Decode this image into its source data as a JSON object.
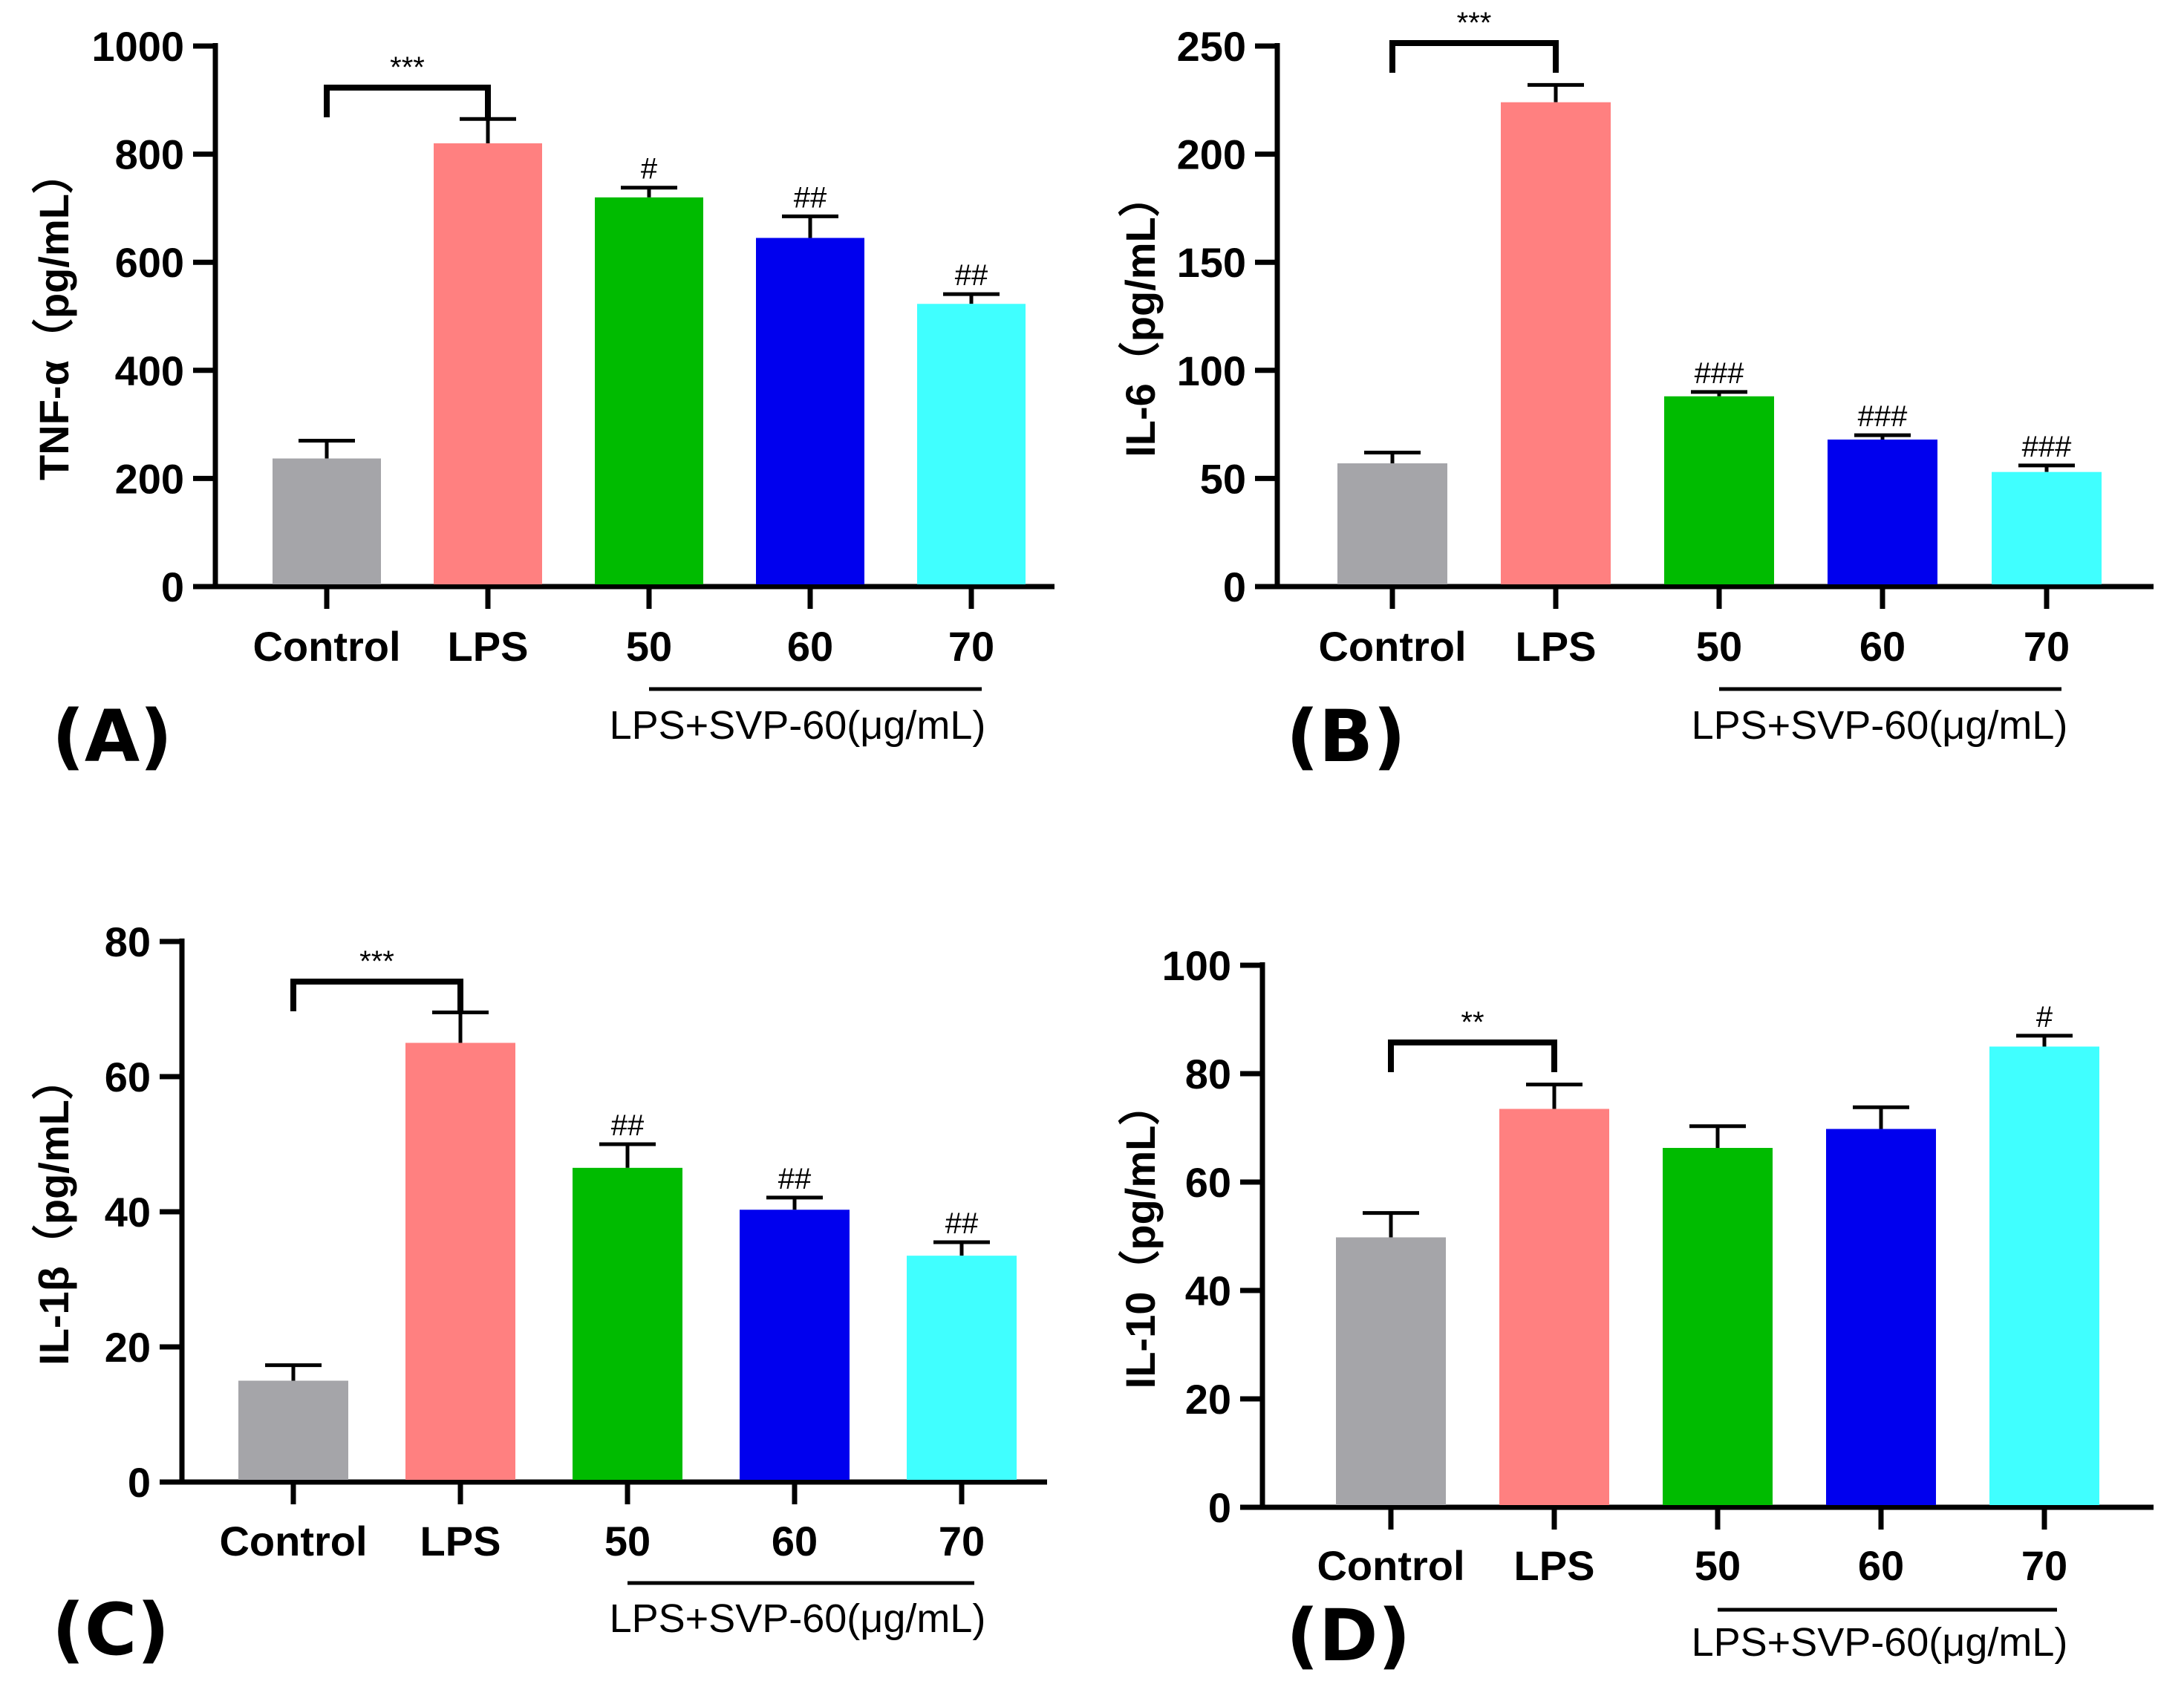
{
  "chart_data": [
    {
      "type": "bar",
      "panel_label": "(A)",
      "ylabel": "TNF-α（pg/mL）",
      "ylim": [
        0,
        1000
      ],
      "yticks": [
        0,
        200,
        400,
        600,
        800,
        1000
      ],
      "categories": [
        "Control",
        "LPS",
        "50",
        "60",
        "70"
      ],
      "values": [
        237,
        820,
        720,
        645,
        523
      ],
      "errors": [
        33,
        45,
        18,
        40,
        18
      ],
      "colors": [
        "#a5a5a9",
        "#ff8080",
        "#00bb00",
        "#0000ee",
        "#40ffff"
      ],
      "annotations": [
        "",
        "",
        "#",
        "##",
        "##"
      ],
      "bracket": {
        "from": 0,
        "to": 1,
        "label": "***"
      },
      "group_label": "LPS+SVP-60(μg/mL)"
    },
    {
      "type": "bar",
      "panel_label": "(B)",
      "ylabel": "IL-6（pg/mL）",
      "ylim": [
        0,
        250
      ],
      "yticks": [
        0,
        50,
        100,
        150,
        200,
        250
      ],
      "categories": [
        "Control",
        "LPS",
        "50",
        "60",
        "70"
      ],
      "values": [
        57,
        224,
        88,
        68,
        53
      ],
      "errors": [
        5,
        8,
        2,
        2,
        3
      ],
      "colors": [
        "#a5a5a9",
        "#ff8080",
        "#00bb00",
        "#0000ee",
        "#40ffff"
      ],
      "annotations": [
        "",
        "",
        "###",
        "###",
        "###"
      ],
      "bracket": {
        "from": 0,
        "to": 1,
        "label": "***"
      },
      "group_label": "LPS+SVP-60(μg/mL)"
    },
    {
      "type": "bar",
      "panel_label": "(C)",
      "ylabel": "IL-1β（pg/mL）",
      "ylim": [
        0,
        80
      ],
      "yticks": [
        0,
        20,
        40,
        60,
        80
      ],
      "categories": [
        "Control",
        "LPS",
        "50",
        "60",
        "70"
      ],
      "values": [
        15,
        65,
        46.5,
        40.3,
        33.5
      ],
      "errors": [
        2.3,
        4.5,
        3.5,
        1.8,
        2
      ],
      "colors": [
        "#a5a5a9",
        "#ff8080",
        "#00bb00",
        "#0000ee",
        "#40ffff"
      ],
      "annotations": [
        "",
        "",
        "##",
        "##",
        "##"
      ],
      "bracket": {
        "from": 0,
        "to": 1,
        "label": "***"
      },
      "group_label": "LPS+SVP-60(μg/mL)"
    },
    {
      "type": "bar",
      "panel_label": "(D)",
      "ylabel": "IL-10（pg/mL）",
      "ylim": [
        0,
        100
      ],
      "yticks": [
        0,
        20,
        40,
        60,
        80,
        100
      ],
      "categories": [
        "Control",
        "LPS",
        "50",
        "60",
        "70"
      ],
      "values": [
        49.8,
        73.5,
        66.3,
        69.8,
        85
      ],
      "errors": [
        4.5,
        4.5,
        4,
        4,
        2
      ],
      "colors": [
        "#a5a5a9",
        "#ff8080",
        "#00bb00",
        "#0000ee",
        "#40ffff"
      ],
      "annotations": [
        "",
        "",
        "",
        "",
        "#"
      ],
      "bracket": {
        "from": 0,
        "to": 1,
        "label": "**"
      },
      "group_label": "LPS+SVP-60(μg/mL)"
    }
  ]
}
